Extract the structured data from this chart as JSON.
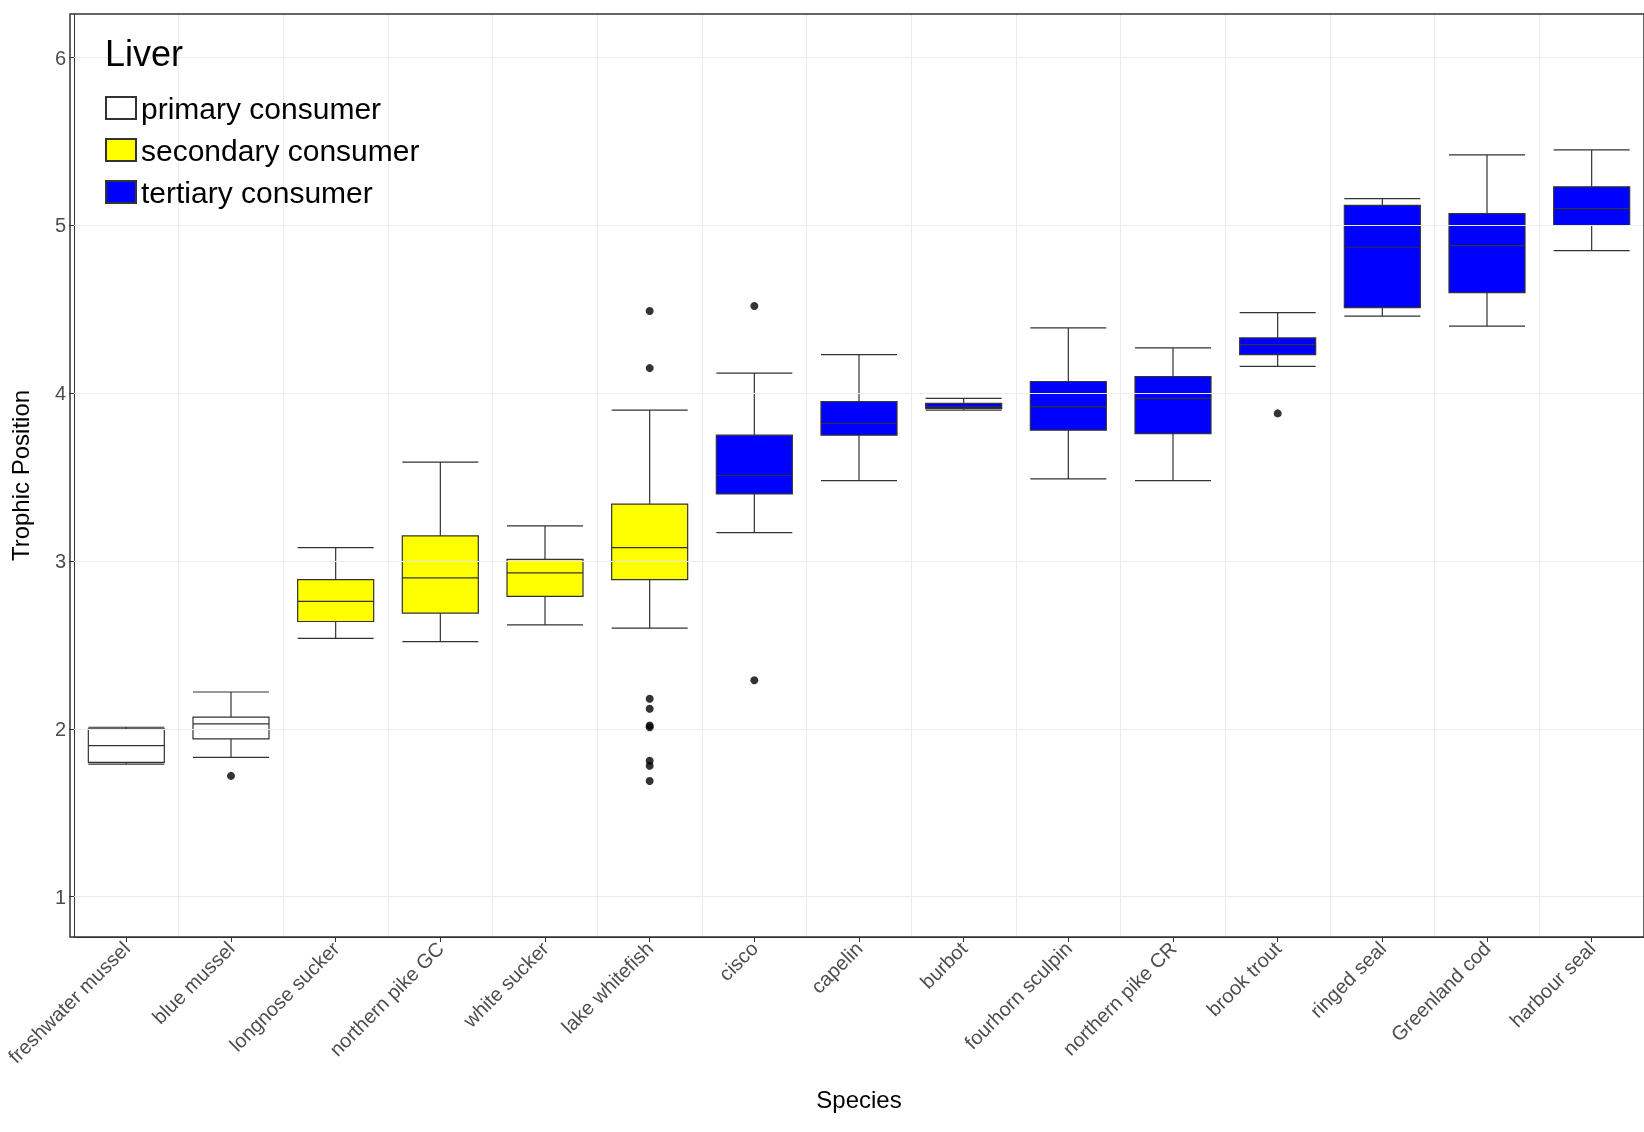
{
  "chart_data": {
    "type": "box",
    "xlabel": "Species",
    "ylabel": "Trophic Position",
    "legend_title": "Liver",
    "categories": [
      "freshwater mussel",
      "blue mussel",
      "longnose sucker",
      "northern pike GC",
      "white sucker",
      "lake whitefish",
      "cisco",
      "capelin",
      "burbot",
      "fourhorn sculpin",
      "northern pike CR",
      "brook trout",
      "ringed seal",
      "Greenland cod",
      "harbour seal"
    ],
    "series": [
      {
        "name": "primary consumer",
        "color": "#ffffff",
        "boxes": [
          {
            "low": 1.79,
            "q1": 1.8,
            "median": 1.9,
            "q3": 2.0,
            "high": 2.01
          },
          {
            "low": 1.83,
            "q1": 1.94,
            "median": 2.03,
            "q3": 2.07,
            "high": 2.22,
            "outliers": [
              1.72
            ]
          },
          null,
          null,
          null,
          null,
          null,
          null,
          null,
          null,
          null,
          null,
          null,
          null,
          null
        ]
      },
      {
        "name": "secondary consumer",
        "color": "#ffff00",
        "boxes": [
          null,
          null,
          {
            "low": 2.54,
            "q1": 2.64,
            "median": 2.76,
            "q3": 2.89,
            "high": 3.08
          },
          {
            "low": 2.52,
            "q1": 2.69,
            "median": 2.9,
            "q3": 3.15,
            "high": 3.59
          },
          {
            "low": 2.62,
            "q1": 2.79,
            "median": 2.93,
            "q3": 3.01,
            "high": 3.21
          },
          {
            "low": 2.6,
            "q1": 2.89,
            "median": 3.08,
            "q3": 3.34,
            "high": 3.9,
            "outliers": [
              4.49,
              4.15,
              2.18,
              2.12,
              2.02,
              2.01,
              1.81,
              1.78,
              1.69
            ]
          },
          null,
          null,
          null,
          null,
          null,
          null,
          null,
          null,
          null
        ]
      },
      {
        "name": "tertiary consumer",
        "color": "#0000ff",
        "boxes": [
          null,
          null,
          null,
          null,
          null,
          null,
          {
            "low": 3.17,
            "q1": 3.4,
            "median": 3.51,
            "q3": 3.75,
            "high": 4.12,
            "outliers": [
              4.52,
              2.29
            ]
          },
          {
            "low": 3.48,
            "q1": 3.75,
            "median": 3.82,
            "q3": 3.95,
            "high": 4.23
          },
          {
            "low": 3.9,
            "q1": 3.91,
            "median": 3.92,
            "q3": 3.94,
            "high": 3.97
          },
          {
            "low": 3.49,
            "q1": 3.78,
            "median": 3.92,
            "q3": 4.07,
            "high": 4.39
          },
          {
            "low": 3.48,
            "q1": 3.76,
            "median": 3.97,
            "q3": 4.1,
            "high": 4.27
          },
          {
            "low": 4.16,
            "q1": 4.23,
            "median": 4.29,
            "q3": 4.33,
            "high": 4.48,
            "outliers": [
              3.88
            ]
          },
          {
            "low": 4.46,
            "q1": 4.51,
            "median": 4.87,
            "q3": 5.12,
            "high": 5.16
          },
          {
            "low": 4.4,
            "q1": 4.6,
            "median": 4.88,
            "q3": 5.07,
            "high": 5.42
          },
          {
            "low": 4.85,
            "q1": 5.0,
            "median": 5.1,
            "q3": 5.23,
            "high": 5.45
          }
        ]
      }
    ],
    "ylim": [
      0.76,
      6.26
    ],
    "yticks": [
      1,
      2,
      3,
      4,
      5,
      6
    ],
    "grid": true,
    "legend": "top left"
  }
}
